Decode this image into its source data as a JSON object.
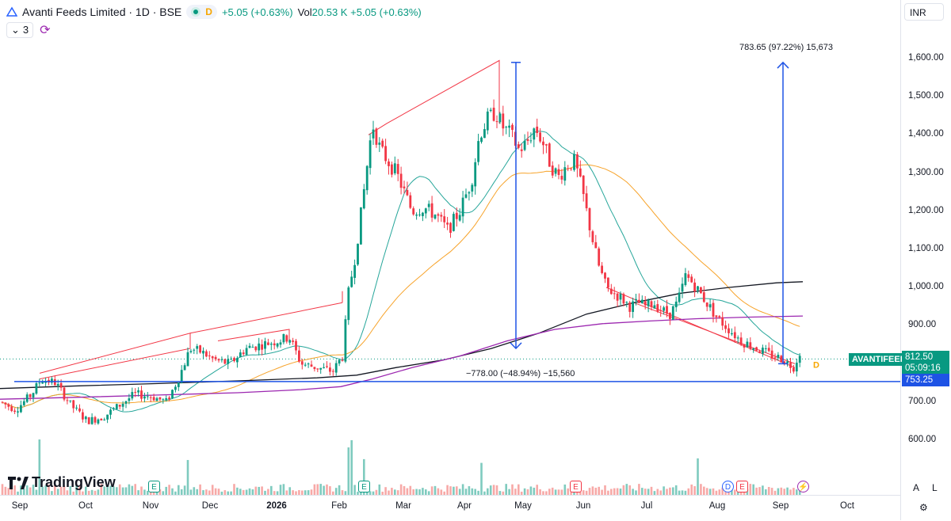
{
  "header": {
    "title": "Avanti Feeds Limited · 1D · BSE",
    "d_badge": "D",
    "change": "+5.05 (+0.63%)",
    "vol_label": "Vol",
    "vol_value": "20.53 K",
    "vol_change": "+5.05 (+0.63%)",
    "indicators_count": "3"
  },
  "currency": "INR",
  "price_ticks": [
    "1,600.00",
    "1,500.00",
    "1,400.00",
    "1,300.00",
    "1,200.00",
    "1,100.00",
    "1,000.00",
    "900.00",
    "700.00",
    "600.00"
  ],
  "time_labels": [
    "Sep",
    "Oct",
    "Nov",
    "Dec",
    "2026",
    "Feb",
    "Mar",
    "Apr",
    "May",
    "Jun",
    "Jul",
    "Aug",
    "Sep",
    "Oct"
  ],
  "symbol_label": "AVANTIFEED",
  "current_price": "812.50",
  "countdown": "05:09:16",
  "line_price": "753.25",
  "measure_up": "783.65 (97.22%) 15,673",
  "measure_down": "−778.00 (−48.94%) −15,560",
  "logo_text": "TradingView",
  "event_labels": {
    "e": "E",
    "d": "D"
  },
  "auto_label": "A",
  "log_label": "L",
  "colors": {
    "up": "#089981",
    "down": "#f23645",
    "ma_fast": "#26a69a",
    "ma_mid": "#f7a32a",
    "ma_200": "#131722",
    "ma_purple": "#9c27b0",
    "drawing": "#f23645",
    "hline": "#1e53e5"
  },
  "chart_data": {
    "type": "candlestick",
    "y_range": [
      560,
      1660
    ],
    "x_range": [
      "2025-09",
      "2026-10"
    ],
    "last_price": 812.5,
    "horizontal_line": 753.25,
    "moving_averages": [
      "fast",
      "mid",
      "long-200",
      "purple"
    ],
    "price_path": [
      [
        0,
        700
      ],
      [
        20,
        680
      ],
      [
        40,
        720
      ],
      [
        52,
        760
      ],
      [
        70,
        750
      ],
      [
        90,
        690
      ],
      [
        110,
        650
      ],
      [
        130,
        660
      ],
      [
        150,
        690
      ],
      [
        170,
        720
      ],
      [
        190,
        715
      ],
      [
        210,
        700
      ],
      [
        225,
        760
      ],
      [
        240,
        840
      ],
      [
        255,
        830
      ],
      [
        270,
        810
      ],
      [
        290,
        800
      ],
      [
        310,
        840
      ],
      [
        330,
        850
      ],
      [
        350,
        860
      ],
      [
        365,
        870
      ],
      [
        380,
        800
      ],
      [
        400,
        790
      ],
      [
        420,
        780
      ],
      [
        432,
        820
      ],
      [
        440,
        990
      ],
      [
        448,
        1080
      ],
      [
        456,
        1200
      ],
      [
        462,
        1300
      ],
      [
        470,
        1430
      ],
      [
        480,
        1360
      ],
      [
        490,
        1330
      ],
      [
        500,
        1300
      ],
      [
        510,
        1250
      ],
      [
        520,
        1200
      ],
      [
        535,
        1210
      ],
      [
        550,
        1190
      ],
      [
        565,
        1150
      ],
      [
        580,
        1200
      ],
      [
        595,
        1280
      ],
      [
        605,
        1400
      ],
      [
        615,
        1440
      ],
      [
        625,
        1460
      ],
      [
        635,
        1420
      ],
      [
        645,
        1400
      ],
      [
        655,
        1360
      ],
      [
        665,
        1380
      ],
      [
        675,
        1420
      ],
      [
        685,
        1380
      ],
      [
        695,
        1320
      ],
      [
        705,
        1290
      ],
      [
        715,
        1320
      ],
      [
        725,
        1330
      ],
      [
        735,
        1250
      ],
      [
        745,
        1150
      ],
      [
        755,
        1060
      ],
      [
        765,
        1000
      ],
      [
        775,
        985
      ],
      [
        785,
        970
      ],
      [
        795,
        950
      ],
      [
        805,
        960
      ],
      [
        815,
        950
      ],
      [
        825,
        960
      ],
      [
        835,
        940
      ],
      [
        845,
        930
      ],
      [
        855,
        960
      ],
      [
        865,
        1030
      ],
      [
        875,
        1010
      ],
      [
        885,
        980
      ],
      [
        895,
        950
      ],
      [
        905,
        920
      ],
      [
        915,
        900
      ],
      [
        925,
        880
      ],
      [
        935,
        860
      ],
      [
        945,
        850
      ],
      [
        955,
        840
      ],
      [
        965,
        830
      ],
      [
        975,
        820
      ],
      [
        985,
        815
      ],
      [
        995,
        800
      ],
      [
        1003,
        790
      ],
      [
        1008,
        835
      ],
      [
        1015,
        812.5
      ]
    ]
  }
}
